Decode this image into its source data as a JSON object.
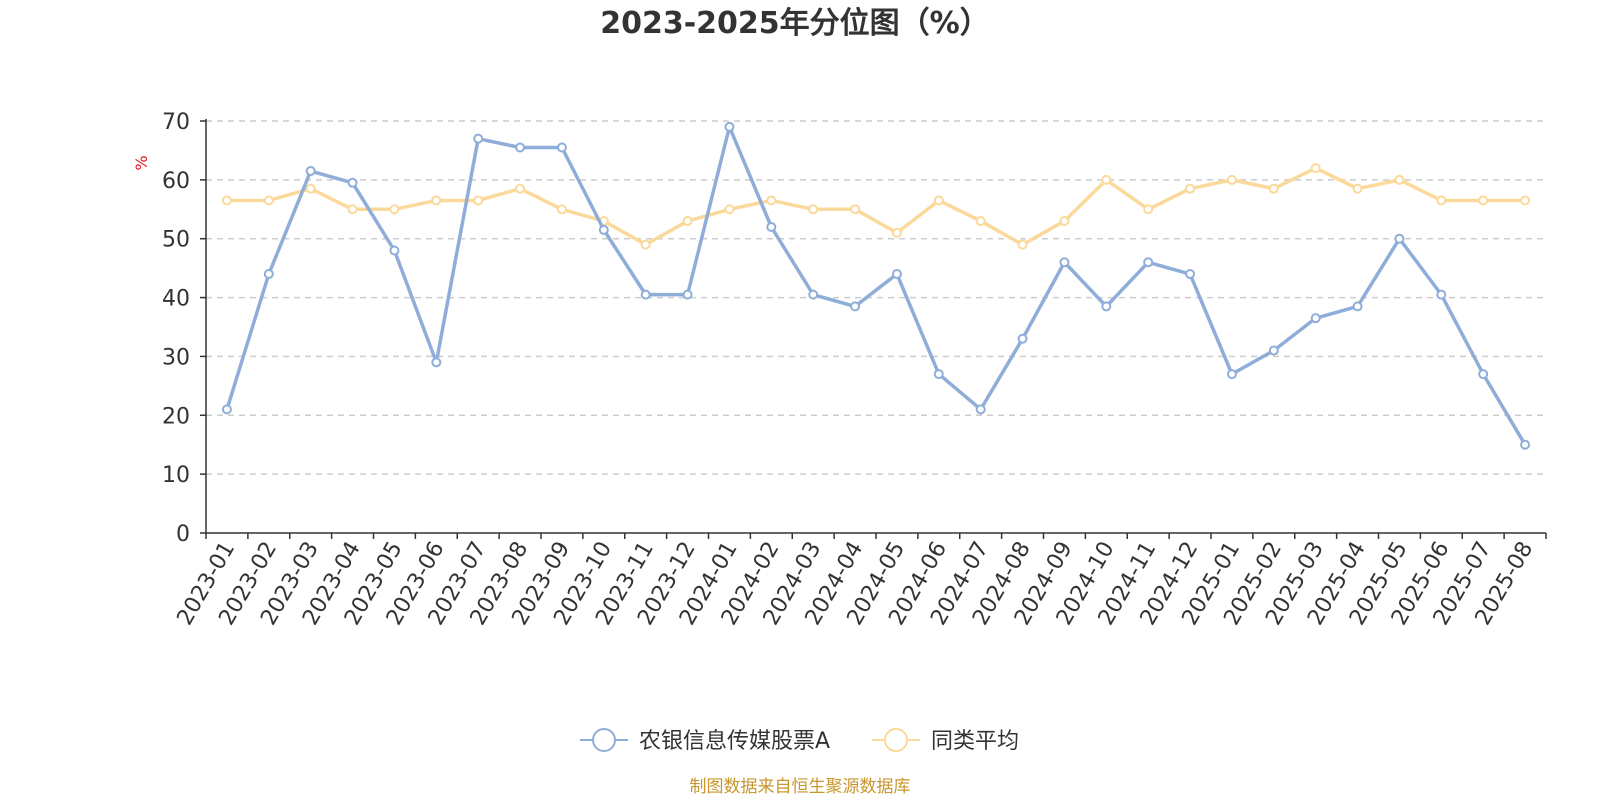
{
  "chart_data": {
    "type": "line",
    "title": "2023-2025年分位图（%）",
    "ylabel": "%",
    "xlabel": "",
    "ylim": [
      0,
      70
    ],
    "yticks": [
      0,
      10,
      20,
      30,
      40,
      50,
      60,
      70
    ],
    "grid": true,
    "legend_position": "bottom",
    "categories": [
      "2023-01",
      "2023-02",
      "2023-03",
      "2023-04",
      "2023-05",
      "2023-06",
      "2023-07",
      "2023-08",
      "2023-09",
      "2023-10",
      "2023-11",
      "2023-12",
      "2024-01",
      "2024-02",
      "2024-03",
      "2024-04",
      "2024-05",
      "2024-06",
      "2024-07",
      "2024-08",
      "2024-09",
      "2024-10",
      "2024-11",
      "2024-12",
      "2025-01",
      "2025-02",
      "2025-03",
      "2025-04",
      "2025-05",
      "2025-06",
      "2025-07",
      "2025-08"
    ],
    "series": [
      {
        "name": "农银信息传媒股票A",
        "color": "#8eaed9",
        "values": [
          21,
          44,
          61.5,
          59.5,
          48,
          29,
          67,
          65.5,
          65.5,
          51.5,
          40.5,
          40.5,
          69,
          52,
          40.5,
          38.5,
          44,
          27,
          21,
          33,
          46,
          38.5,
          46,
          44,
          27,
          31,
          36.5,
          38.5,
          50,
          40.5,
          27,
          15
        ]
      },
      {
        "name": "同类平均",
        "color": "#fbd99a",
        "values": [
          56.5,
          56.5,
          58.5,
          55,
          55,
          56.5,
          56.5,
          58.5,
          55,
          53,
          49,
          53,
          55,
          56.5,
          55,
          55,
          51,
          56.5,
          53,
          49,
          53,
          60,
          55,
          58.5,
          60,
          58.5,
          62,
          58.5,
          60,
          56.5,
          56.5,
          56.5
        ]
      }
    ]
  },
  "footer": {
    "source": "制图数据来自恒生聚源数据库"
  }
}
